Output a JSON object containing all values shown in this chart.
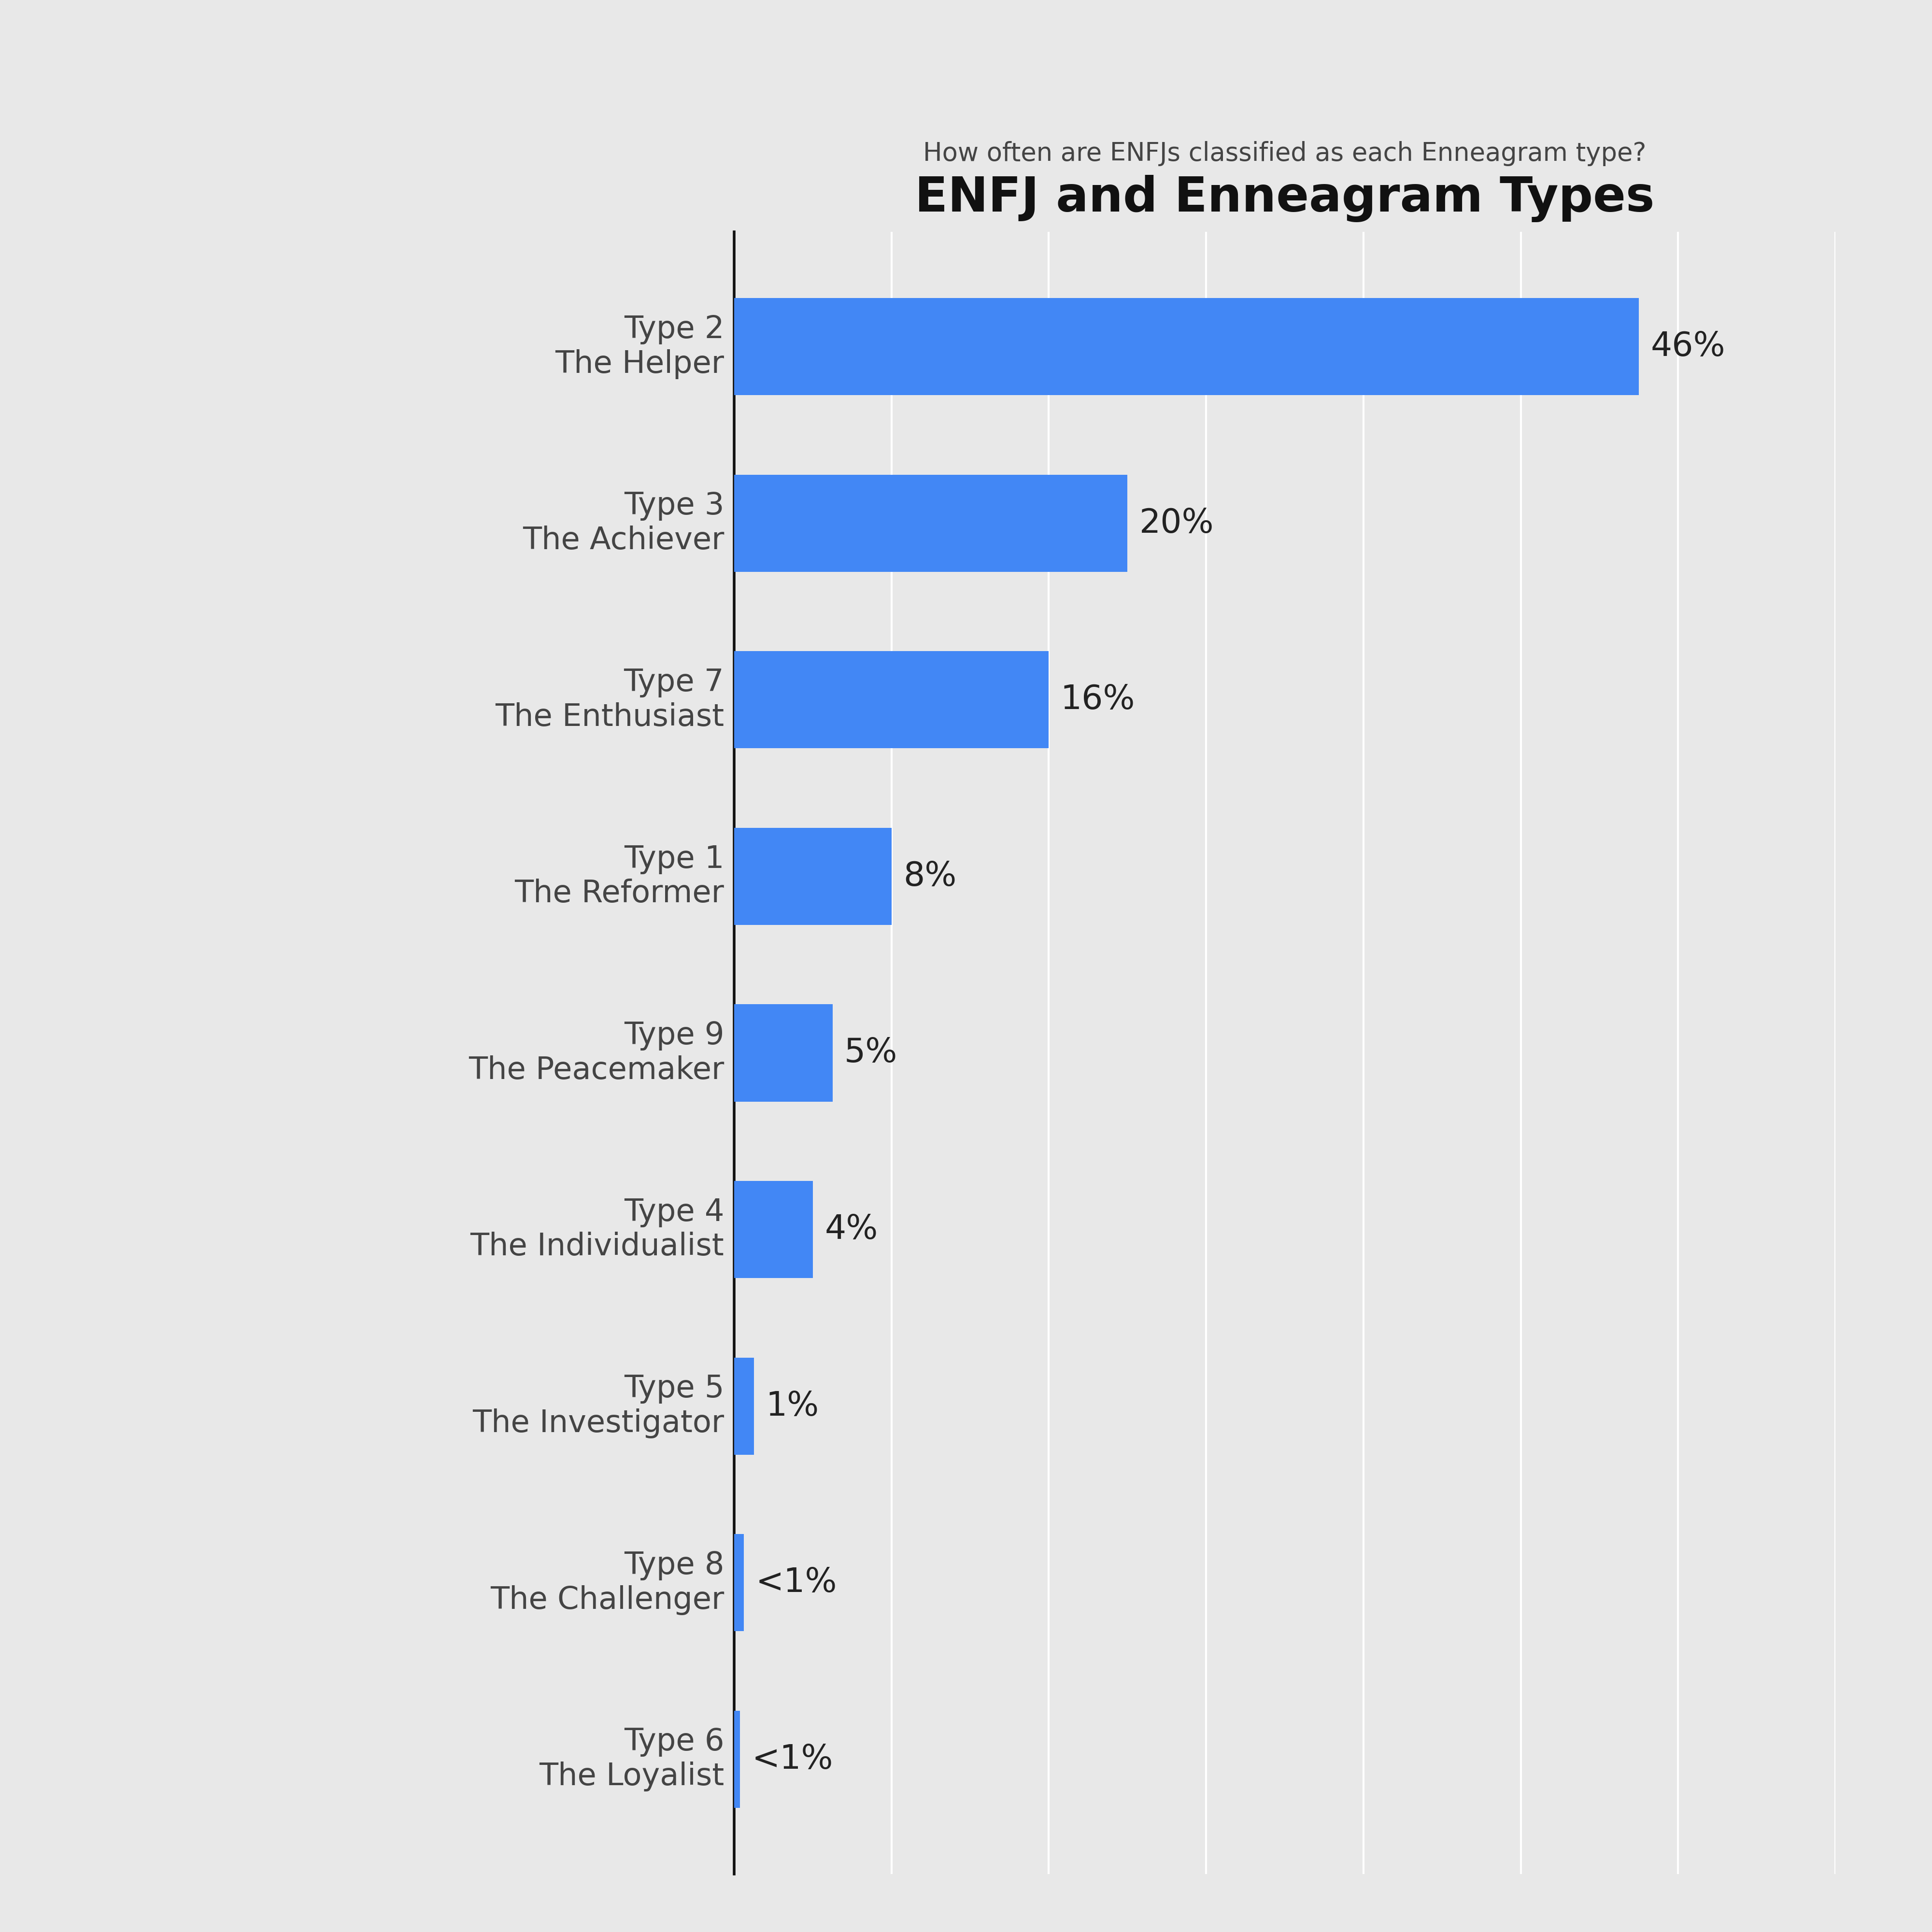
{
  "title": "ENFJ and Enneagram Types",
  "subtitle": "How often are ENFJs classified as each Enneagram type?",
  "categories": [
    "Type 2\nThe Helper",
    "Type 3\nThe Achiever",
    "Type 7\nThe Enthusiast",
    "Type 1\nThe Reformer",
    "Type 9\nThe Peacemaker",
    "Type 4\nThe Individualist",
    "Type 5\nThe Investigator",
    "Type 8\nThe Challenger",
    "Type 6\nThe Loyalist"
  ],
  "values": [
    46,
    20,
    16,
    8,
    5,
    4,
    1,
    0.5,
    0.3
  ],
  "labels": [
    "46%",
    "20%",
    "16%",
    "8%",
    "5%",
    "4%",
    "1%",
    "<1%",
    "<1%"
  ],
  "bar_color": "#4287f5",
  "background_color": "#e8e8e8",
  "title_fontsize": 72,
  "subtitle_fontsize": 38,
  "label_fontsize": 50,
  "tick_fontsize": 46,
  "xlim": [
    0,
    56
  ],
  "grid_color": "#ffffff",
  "bar_height": 0.55,
  "spine_color": "#111111"
}
